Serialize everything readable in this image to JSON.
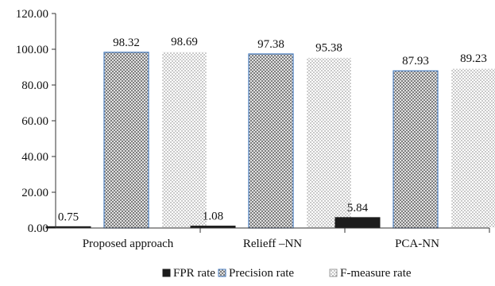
{
  "chart_data": {
    "type": "bar",
    "title": "",
    "xlabel": "",
    "ylabel": "",
    "categories": [
      "Proposed approach",
      "Relieff –NN",
      "PCA-NN"
    ],
    "series": [
      {
        "name": "FPR rate",
        "values": [
          0.75,
          1.08,
          5.84
        ],
        "labels": [
          "0.75",
          "1.08",
          "5.84"
        ],
        "pattern": "solid-dark"
      },
      {
        "name": "Precision rate",
        "values": [
          98.32,
          97.38,
          87.93
        ],
        "labels": [
          "98.32",
          "97.38",
          "87.93"
        ],
        "pattern": "crosshatch",
        "border_color": "#4a7ec0"
      },
      {
        "name": "F-measure rate",
        "values": [
          98.69,
          95.38,
          89.23
        ],
        "labels": [
          "98.69",
          "95.38",
          "89.23"
        ],
        "pattern": "dots"
      }
    ],
    "ylim": [
      0,
      120
    ],
    "yticks": [
      "0.00",
      "20.00",
      "40.00",
      "60.00",
      "80.00",
      "100.00",
      "120.00"
    ],
    "ytick_values": [
      0,
      20,
      40,
      60,
      80,
      100,
      120
    ],
    "grid": false,
    "legend_position": "bottom"
  }
}
